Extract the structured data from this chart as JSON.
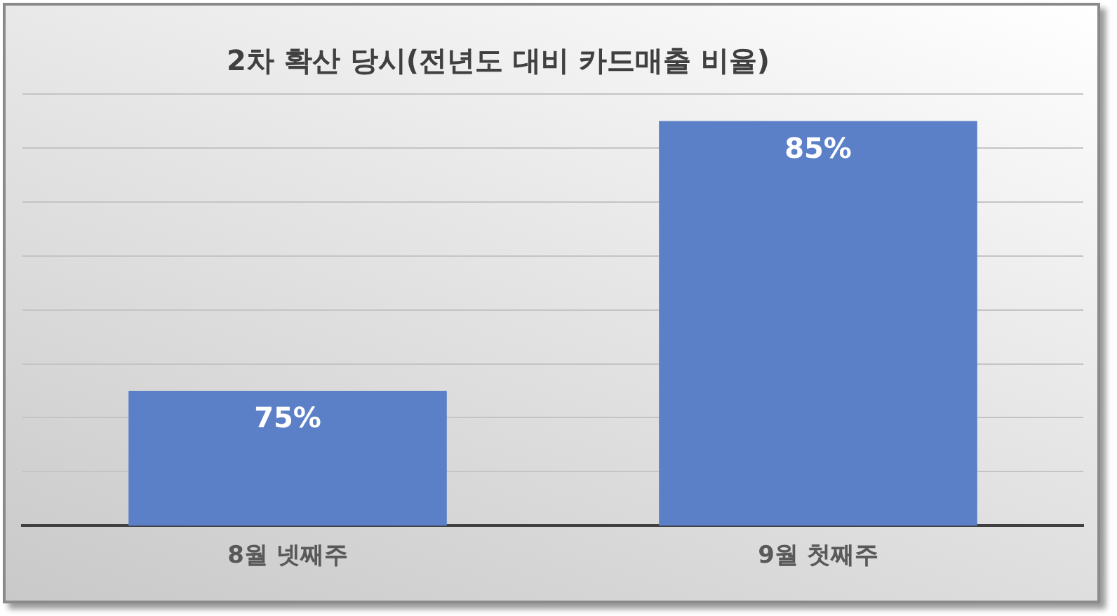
{
  "chart_data": {
    "type": "bar",
    "title": "2차 확산 당시(전년도 대비 카드매출 비율)",
    "categories": [
      "8월 넷째주",
      "9월 첫째주"
    ],
    "values": [
      75,
      85
    ],
    "color": "#5b80c8",
    "ylim": [
      70,
      86
    ],
    "yticks": [
      {
        "value": 70,
        "label": null
      },
      {
        "value": 72,
        "label": null
      },
      {
        "value": 74,
        "label": null
      },
      {
        "value": 76,
        "label": null
      },
      {
        "value": 78,
        "label": null
      },
      {
        "value": 80,
        "label": null
      },
      {
        "value": 82,
        "label": null
      },
      {
        "value": 84,
        "label": null
      },
      {
        "value": 86,
        "label": null
      }
    ],
    "value_labels": [
      "75%",
      "85%"
    ],
    "grid": "y",
    "tick_labels": "x",
    "legend": false
  }
}
